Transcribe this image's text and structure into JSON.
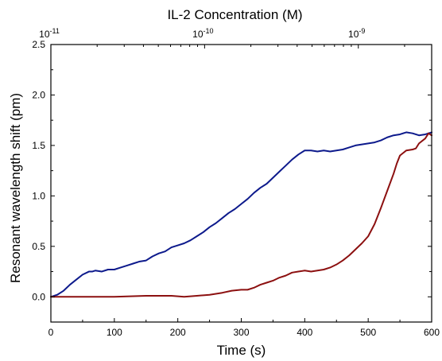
{
  "chart_data": {
    "type": "line",
    "title": "",
    "xlabel": "Time (s)",
    "ylabel": "Resonant wavelength shift (pm)",
    "top_xlabel": "IL-2 Concentration (M)",
    "xlim": [
      0,
      600
    ],
    "ylim": [
      -0.25,
      2.5
    ],
    "x_ticks": [
      {
        "value": 0,
        "label": "0"
      },
      {
        "value": 100,
        "label": "100"
      },
      {
        "value": 200,
        "label": "200"
      },
      {
        "value": 300,
        "label": "300"
      },
      {
        "value": 400,
        "label": "400"
      },
      {
        "value": 500,
        "label": "500"
      },
      {
        "value": 600,
        "label": "600"
      }
    ],
    "y_ticks": [
      {
        "value": 0.0,
        "label": "0.0"
      },
      {
        "value": 0.5,
        "label": "0.5"
      },
      {
        "value": 1.0,
        "label": "1.0"
      },
      {
        "value": 1.5,
        "label": "1.5"
      },
      {
        "value": 2.0,
        "label": "2.0"
      },
      {
        "value": 2.5,
        "label": "2.5"
      }
    ],
    "top_axis": {
      "scale": "log",
      "lim": [
        1e-11,
        3e-09
      ],
      "ticks": [
        {
          "value": 1e-11,
          "base": "10",
          "exp": "-11"
        },
        {
          "value": 1e-10,
          "base": "10",
          "exp": "-10"
        },
        {
          "value": 1e-09,
          "base": "10",
          "exp": "-9"
        }
      ]
    },
    "grid": false,
    "series": [
      {
        "color": "#0d1a8c",
        "x": [
          0,
          10,
          20,
          30,
          40,
          50,
          60,
          65,
          70,
          80,
          90,
          100,
          110,
          120,
          130,
          140,
          150,
          160,
          170,
          180,
          190,
          200,
          210,
          220,
          230,
          240,
          250,
          260,
          270,
          280,
          290,
          300,
          310,
          320,
          330,
          340,
          350,
          360,
          370,
          380,
          390,
          400,
          410,
          420,
          430,
          440,
          450,
          460,
          470,
          480,
          490,
          500,
          510,
          520,
          530,
          540,
          550,
          560,
          570,
          580,
          590,
          600
        ],
        "y": [
          0.0,
          0.02,
          0.06,
          0.12,
          0.17,
          0.22,
          0.25,
          0.25,
          0.26,
          0.25,
          0.27,
          0.27,
          0.29,
          0.31,
          0.33,
          0.35,
          0.36,
          0.4,
          0.43,
          0.45,
          0.49,
          0.51,
          0.53,
          0.56,
          0.6,
          0.64,
          0.69,
          0.73,
          0.78,
          0.83,
          0.87,
          0.92,
          0.97,
          1.03,
          1.08,
          1.12,
          1.18,
          1.24,
          1.3,
          1.36,
          1.41,
          1.45,
          1.45,
          1.44,
          1.45,
          1.44,
          1.45,
          1.46,
          1.48,
          1.5,
          1.51,
          1.52,
          1.53,
          1.55,
          1.58,
          1.6,
          1.61,
          1.63,
          1.62,
          1.6,
          1.61,
          1.63
        ]
      },
      {
        "color": "#8c1010",
        "x": [
          0,
          50,
          100,
          150,
          190,
          210,
          230,
          250,
          270,
          285,
          300,
          310,
          320,
          330,
          340,
          350,
          360,
          370,
          380,
          390,
          400,
          410,
          420,
          430,
          440,
          450,
          460,
          470,
          480,
          490,
          500,
          510,
          520,
          530,
          540,
          545,
          550,
          560,
          570,
          575,
          580,
          590,
          595,
          600
        ],
        "y": [
          0.0,
          0.0,
          0.0,
          0.01,
          0.01,
          0.0,
          0.01,
          0.02,
          0.04,
          0.06,
          0.07,
          0.07,
          0.09,
          0.12,
          0.14,
          0.16,
          0.19,
          0.21,
          0.24,
          0.25,
          0.26,
          0.25,
          0.26,
          0.27,
          0.29,
          0.32,
          0.36,
          0.41,
          0.47,
          0.53,
          0.6,
          0.72,
          0.88,
          1.05,
          1.22,
          1.32,
          1.4,
          1.45,
          1.46,
          1.47,
          1.52,
          1.57,
          1.62,
          1.6
        ]
      }
    ]
  }
}
